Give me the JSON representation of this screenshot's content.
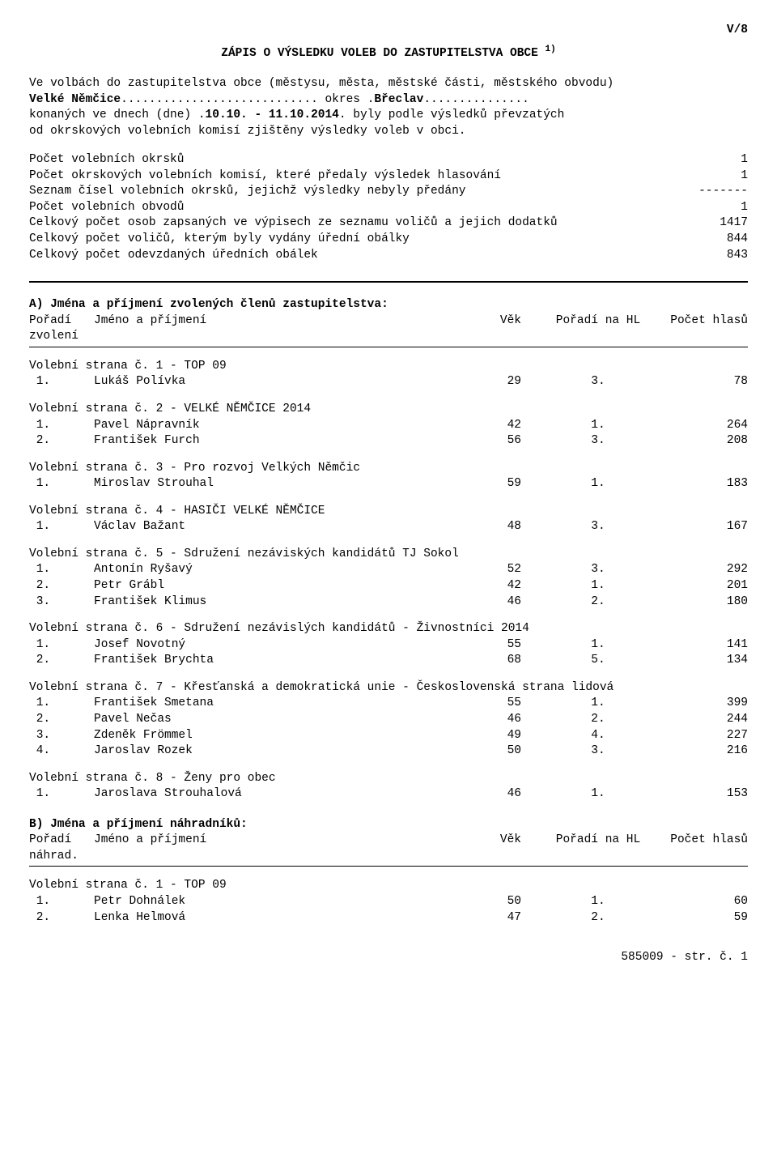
{
  "page_code": "V/8",
  "title": "ZÁPIS O VÝSLEDKU VOLEB DO ZASTUPITELSTVA OBCE",
  "title_sup": "1)",
  "intro": {
    "line1": "Ve volbách do zastupitelstva obce (městysu, města, městské části, městského obvodu)",
    "obec": "Velké Němčice",
    "obec_dots": "............................",
    "okres_label": " okres ",
    "okres": "Břeclav",
    "okres_dots_pre": ".",
    "okres_dots_post": "...............",
    "line3a": "konaných ve dnech (dne) ",
    "dates": "10.10. - 11.10.2014",
    "dates_dots_pre": ".",
    "dates_dots_post": ".",
    "line3b": " byly podle výsledků převzatých",
    "line4": "od okrskových volebních komisí zjištěny výsledky voleb v obci."
  },
  "stats": [
    {
      "label": "Počet volebních okrsků",
      "value": "1"
    },
    {
      "label": "Počet okrskových volebních komisí, které předaly výsledek hlasování",
      "value": "1"
    },
    {
      "label": "Seznam čísel volebních okrsků, jejichž výsledky nebyly předány",
      "value": "-------"
    },
    {
      "label": "Počet volebních obvodů",
      "value": "1"
    },
    {
      "label": "Celkový počet osob zapsaných ve výpisech ze seznamu voličů a jejich dodatků",
      "value": "1417"
    },
    {
      "label": "Celkový počet voličů, kterým byly vydány úřední obálky",
      "value": "844"
    },
    {
      "label": "Celkový počet odevzdaných úředních obálek",
      "value": "843"
    }
  ],
  "sectionA": {
    "heading": "A) Jména a příjmení zvolených členů zastupitelstva:",
    "col_poradi": "Pořadí",
    "col_sub": "zvolení",
    "col_name": "Jméno a příjmení",
    "col_vek": "Věk",
    "col_phl": "Pořadí na HL",
    "col_votes": "Počet hlasů"
  },
  "partiesA": [
    {
      "title": "Volební strana č. 1 - TOP 09",
      "rows": [
        {
          "n": "1.",
          "name": "Lukáš Polívka",
          "vek": "29",
          "phl": "3.",
          "votes": "78"
        }
      ]
    },
    {
      "title": "Volební strana č. 2 - VELKÉ NĚMČICE 2014",
      "rows": [
        {
          "n": "1.",
          "name": "Pavel Nápravník",
          "vek": "42",
          "phl": "1.",
          "votes": "264"
        },
        {
          "n": "2.",
          "name": "František Furch",
          "vek": "56",
          "phl": "3.",
          "votes": "208"
        }
      ]
    },
    {
      "title": "Volební strana č. 3 - Pro rozvoj Velkých Němčic",
      "rows": [
        {
          "n": "1.",
          "name": "Miroslav Strouhal",
          "vek": "59",
          "phl": "1.",
          "votes": "183"
        }
      ]
    },
    {
      "title": "Volební strana č. 4 - HASIČI VELKÉ NĚMČICE",
      "rows": [
        {
          "n": "1.",
          "name": "Václav Bažant",
          "vek": "48",
          "phl": "3.",
          "votes": "167"
        }
      ]
    },
    {
      "title": "Volební strana č. 5 - Sdružení nezáviských kandidátů TJ Sokol",
      "rows": [
        {
          "n": "1.",
          "name": "Antonín Ryšavý",
          "vek": "52",
          "phl": "3.",
          "votes": "292"
        },
        {
          "n": "2.",
          "name": "Petr Grábl",
          "vek": "42",
          "phl": "1.",
          "votes": "201"
        },
        {
          "n": "3.",
          "name": "František Klimus",
          "vek": "46",
          "phl": "2.",
          "votes": "180"
        }
      ]
    },
    {
      "title": "Volební strana č. 6 - Sdružení nezávislých kandidátů - Živnostníci 2014",
      "rows": [
        {
          "n": "1.",
          "name": "Josef Novotný",
          "vek": "55",
          "phl": "1.",
          "votes": "141"
        },
        {
          "n": "2.",
          "name": "František Brychta",
          "vek": "68",
          "phl": "5.",
          "votes": "134"
        }
      ]
    },
    {
      "title": "Volební strana č. 7 - Křesťanská a demokratická unie - Československá strana lidová",
      "rows": [
        {
          "n": "1.",
          "name": "František Smetana",
          "vek": "55",
          "phl": "1.",
          "votes": "399"
        },
        {
          "n": "2.",
          "name": "Pavel Nečas",
          "vek": "46",
          "phl": "2.",
          "votes": "244"
        },
        {
          "n": "3.",
          "name": "Zdeněk Frömmel",
          "vek": "49",
          "phl": "4.",
          "votes": "227"
        },
        {
          "n": "4.",
          "name": "Jaroslav Rozek",
          "vek": "50",
          "phl": "3.",
          "votes": "216"
        }
      ]
    },
    {
      "title": "Volební strana č. 8 - Ženy pro obec",
      "rows": [
        {
          "n": "1.",
          "name": "Jaroslava Strouhalová",
          "vek": "46",
          "phl": "1.",
          "votes": "153"
        }
      ]
    }
  ],
  "sectionB": {
    "heading": "B) Jména a příjmení náhradníků:",
    "col_poradi": "Pořadí",
    "col_sub": "náhrad.",
    "col_name": "Jméno a příjmení",
    "col_vek": "Věk",
    "col_phl": "Pořadí na HL",
    "col_votes": "Počet hlasů"
  },
  "partiesB": [
    {
      "title": "Volební strana č. 1 - TOP 09",
      "rows": [
        {
          "n": "1.",
          "name": "Petr Dohnálek",
          "vek": "50",
          "phl": "1.",
          "votes": "60"
        },
        {
          "n": "2.",
          "name": "Lenka Helmová",
          "vek": "47",
          "phl": "2.",
          "votes": "59"
        }
      ]
    }
  ],
  "footer": "585009 - str. č. 1"
}
